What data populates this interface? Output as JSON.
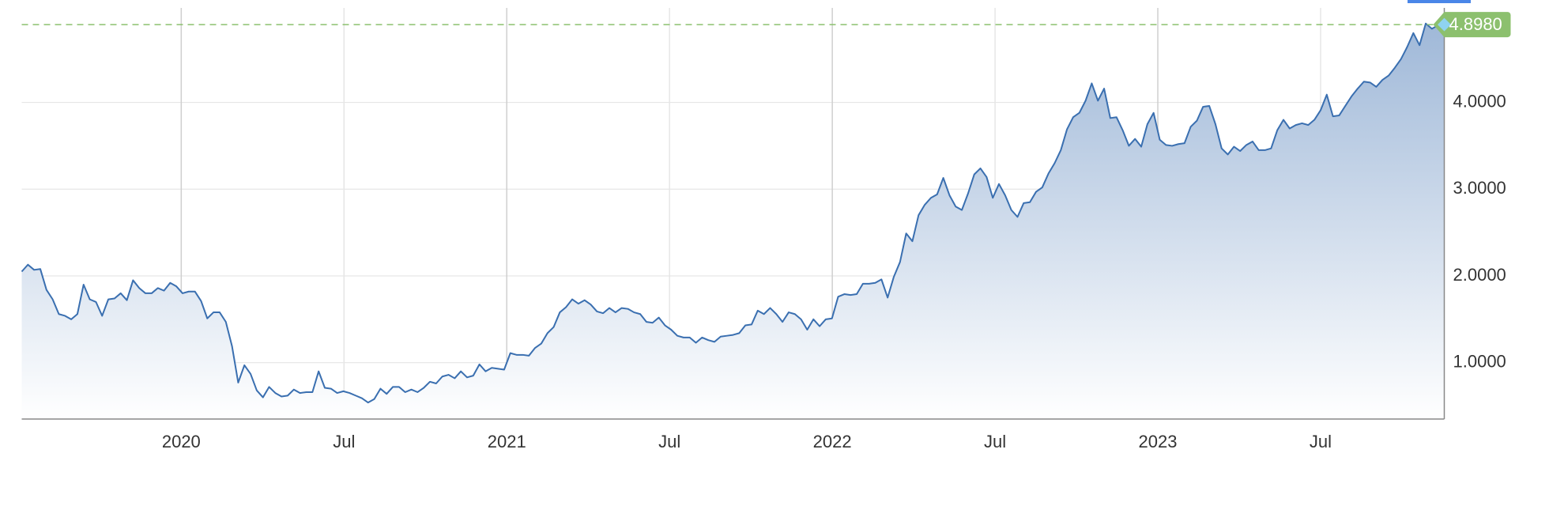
{
  "chart_data": {
    "type": "area",
    "series": [
      {
        "color": "#3a6fb0",
        "x": [
          2019.51,
          2019.529,
          2019.548,
          2019.567,
          2019.586,
          2019.605,
          2019.624,
          2019.643,
          2019.662,
          2019.681,
          2019.7,
          2019.719,
          2019.738,
          2019.757,
          2019.776,
          2019.795,
          2019.814,
          2019.833,
          2019.852,
          2019.871,
          2019.89,
          2019.909,
          2019.928,
          2019.947,
          2019.966,
          2019.985,
          2020.004,
          2020.023,
          2020.042,
          2020.061,
          2020.08,
          2020.099,
          2020.118,
          2020.137,
          2020.156,
          2020.175,
          2020.194,
          2020.213,
          2020.232,
          2020.251,
          2020.27,
          2020.289,
          2020.308,
          2020.327,
          2020.346,
          2020.365,
          2020.384,
          2020.403,
          2020.422,
          2020.441,
          2020.46,
          2020.479,
          2020.498,
          2020.517,
          2020.536,
          2020.555,
          2020.574,
          2020.593,
          2020.612,
          2020.631,
          2020.65,
          2020.669,
          2020.688,
          2020.707,
          2020.726,
          2020.745,
          2020.764,
          2020.783,
          2020.802,
          2020.821,
          2020.84,
          2020.859,
          2020.878,
          2020.897,
          2020.916,
          2020.935,
          2020.954,
          2020.973,
          2020.992,
          2021.011,
          2021.03,
          2021.049,
          2021.068,
          2021.087,
          2021.106,
          2021.125,
          2021.144,
          2021.163,
          2021.182,
          2021.201,
          2021.22,
          2021.239,
          2021.258,
          2021.277,
          2021.296,
          2021.315,
          2021.334,
          2021.353,
          2021.372,
          2021.391,
          2021.41,
          2021.429,
          2021.448,
          2021.467,
          2021.486,
          2021.505,
          2021.524,
          2021.543,
          2021.562,
          2021.581,
          2021.6,
          2021.619,
          2021.638,
          2021.657,
          2021.676,
          2021.695,
          2021.714,
          2021.733,
          2021.752,
          2021.771,
          2021.79,
          2021.809,
          2021.828,
          2021.847,
          2021.866,
          2021.885,
          2021.904,
          2021.923,
          2021.942,
          2021.961,
          2021.98,
          2021.999,
          2022.018,
          2022.037,
          2022.056,
          2022.075,
          2022.094,
          2022.113,
          2022.132,
          2022.151,
          2022.17,
          2022.189,
          2022.208,
          2022.227,
          2022.246,
          2022.265,
          2022.284,
          2022.303,
          2022.322,
          2022.341,
          2022.36,
          2022.379,
          2022.398,
          2022.417,
          2022.436,
          2022.455,
          2022.474,
          2022.493,
          2022.512,
          2022.531,
          2022.55,
          2022.569,
          2022.588,
          2022.607,
          2022.626,
          2022.645,
          2022.664,
          2022.683,
          2022.702,
          2022.721,
          2022.74,
          2022.759,
          2022.778,
          2022.797,
          2022.816,
          2022.835,
          2022.854,
          2022.873,
          2022.892,
          2022.911,
          2022.93,
          2022.949,
          2022.968,
          2022.987,
          2023.006,
          2023.025,
          2023.044,
          2023.063,
          2023.082,
          2023.101,
          2023.12,
          2023.139,
          2023.158,
          2023.177,
          2023.196,
          2023.215,
          2023.234,
          2023.253,
          2023.272,
          2023.291,
          2023.31,
          2023.329,
          2023.348,
          2023.367,
          2023.386,
          2023.405,
          2023.424,
          2023.443,
          2023.462,
          2023.481,
          2023.5,
          2023.519,
          2023.538,
          2023.557,
          2023.576,
          2023.595,
          2023.614,
          2023.633,
          2023.652,
          2023.671,
          2023.69,
          2023.709,
          2023.728,
          2023.747,
          2023.766,
          2023.785,
          2023.804,
          2023.823,
          2023.842,
          2023.861,
          2023.88
        ],
        "values": [
          2.05,
          2.13,
          2.07,
          2.08,
          1.84,
          1.73,
          1.56,
          1.54,
          1.5,
          1.56,
          1.9,
          1.73,
          1.7,
          1.54,
          1.73,
          1.74,
          1.8,
          1.72,
          1.95,
          1.86,
          1.8,
          1.8,
          1.86,
          1.83,
          1.92,
          1.88,
          1.8,
          1.82,
          1.82,
          1.71,
          1.51,
          1.58,
          1.58,
          1.47,
          1.19,
          0.77,
          0.97,
          0.87,
          0.68,
          0.6,
          0.72,
          0.65,
          0.61,
          0.62,
          0.69,
          0.65,
          0.66,
          0.66,
          0.9,
          0.71,
          0.7,
          0.65,
          0.67,
          0.65,
          0.62,
          0.59,
          0.54,
          0.58,
          0.7,
          0.64,
          0.72,
          0.72,
          0.66,
          0.69,
          0.66,
          0.71,
          0.78,
          0.76,
          0.84,
          0.86,
          0.82,
          0.9,
          0.83,
          0.85,
          0.98,
          0.9,
          0.94,
          0.93,
          0.92,
          1.11,
          1.09,
          1.09,
          1.08,
          1.17,
          1.22,
          1.34,
          1.41,
          1.58,
          1.64,
          1.73,
          1.68,
          1.72,
          1.67,
          1.59,
          1.57,
          1.63,
          1.58,
          1.63,
          1.62,
          1.58,
          1.56,
          1.47,
          1.46,
          1.52,
          1.43,
          1.38,
          1.31,
          1.29,
          1.29,
          1.23,
          1.29,
          1.26,
          1.24,
          1.3,
          1.31,
          1.32,
          1.34,
          1.43,
          1.44,
          1.6,
          1.56,
          1.63,
          1.56,
          1.47,
          1.58,
          1.56,
          1.5,
          1.38,
          1.5,
          1.42,
          1.5,
          1.51,
          1.76,
          1.79,
          1.78,
          1.79,
          1.91,
          1.91,
          1.92,
          1.96,
          1.75,
          1.99,
          2.16,
          2.49,
          2.4,
          2.7,
          2.82,
          2.9,
          2.94,
          3.13,
          2.93,
          2.8,
          2.76,
          2.95,
          3.17,
          3.24,
          3.14,
          2.9,
          3.06,
          2.93,
          2.76,
          2.68,
          2.84,
          2.85,
          2.97,
          3.02,
          3.18,
          3.3,
          3.45,
          3.69,
          3.83,
          3.88,
          4.02,
          4.22,
          4.02,
          4.16,
          3.82,
          3.83,
          3.68,
          3.5,
          3.58,
          3.49,
          3.75,
          3.88,
          3.57,
          3.51,
          3.5,
          3.52,
          3.53,
          3.72,
          3.79,
          3.95,
          3.96,
          3.75,
          3.47,
          3.4,
          3.49,
          3.44,
          3.51,
          3.55,
          3.45,
          3.45,
          3.47,
          3.68,
          3.8,
          3.7,
          3.74,
          3.76,
          3.74,
          3.8,
          3.91,
          4.09,
          3.84,
          3.85,
          3.96,
          4.07,
          4.16,
          4.24,
          4.23,
          4.18,
          4.26,
          4.31,
          4.4,
          4.5,
          4.64,
          4.8,
          4.66,
          4.91,
          4.85,
          4.89,
          4.898
        ]
      }
    ],
    "xlim": [
      2019.51,
      2023.88
    ],
    "xticks": [
      2020,
      {
        "value": 2020.5,
        "label": "Jul"
      },
      2021,
      {
        "value": 2021.5,
        "label": "Jul"
      },
      2022,
      {
        "value": 2022.5,
        "label": "Jul"
      },
      2023,
      {
        "value": 2023.5,
        "label": "Jul"
      }
    ],
    "ylim": [
      0.35,
      5.09
    ],
    "yticks": [
      {
        "value": 1,
        "label": "1.0000"
      },
      {
        "value": 2,
        "label": "2.0000"
      },
      {
        "value": 3,
        "label": "3.0000"
      },
      {
        "value": 4,
        "label": "4.0000"
      }
    ],
    "grid": true,
    "annotation": {
      "value": 4.898,
      "label": "4.8980",
      "color": "#8cc06e"
    }
  }
}
